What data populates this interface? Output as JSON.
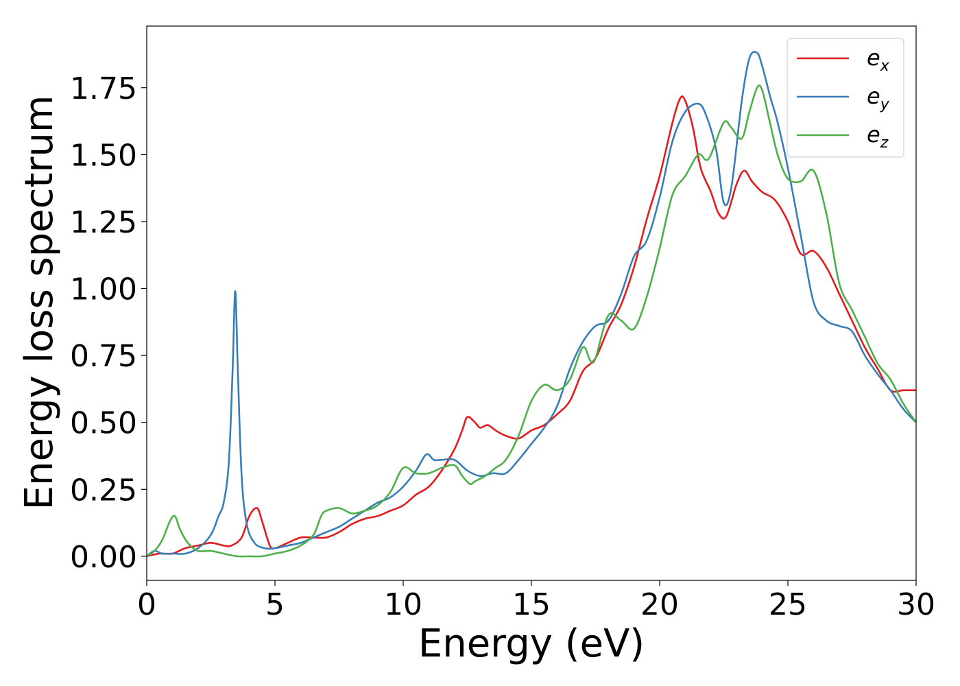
{
  "chart_data": {
    "type": "line",
    "xlabel": "Energy (eV)",
    "ylabel": "Energy loss spectrum",
    "xlim": [
      0,
      30
    ],
    "ylim": [
      -0.09,
      1.98
    ],
    "xticks": [
      "0",
      "5",
      "10",
      "15",
      "20",
      "25",
      "30"
    ],
    "yticks": [
      "0.00",
      "0.25",
      "0.50",
      "0.75",
      "1.00",
      "1.25",
      "1.50",
      "1.75"
    ],
    "grid": false,
    "legend_position": "top-right",
    "series": [
      {
        "name": "e",
        "subscript": "x",
        "color": "#e41a1c",
        "x": [
          0,
          0.5,
          1.0,
          1.5,
          2.0,
          2.5,
          3.0,
          3.3,
          3.7,
          4.0,
          4.3,
          4.5,
          4.8,
          5.0,
          5.5,
          6.0,
          6.5,
          7.0,
          7.5,
          8.0,
          8.5,
          9.0,
          9.5,
          10.0,
          10.5,
          11.0,
          11.5,
          12.0,
          12.3,
          12.5,
          12.8,
          13.0,
          13.3,
          13.6,
          14.0,
          14.5,
          15.0,
          15.5,
          16.0,
          16.5,
          17.0,
          17.5,
          18.0,
          18.5,
          19.0,
          19.5,
          20.0,
          20.5,
          20.8,
          21.0,
          21.3,
          21.6,
          22.0,
          22.3,
          22.6,
          23.0,
          23.3,
          23.6,
          24.0,
          24.5,
          25.0,
          25.5,
          26.0,
          26.5,
          27.0,
          27.5,
          28.0,
          28.5,
          29.0,
          29.5,
          30.0
        ],
        "y": [
          0.0,
          0.01,
          0.01,
          0.03,
          0.04,
          0.05,
          0.04,
          0.04,
          0.07,
          0.15,
          0.18,
          0.13,
          0.04,
          0.03,
          0.05,
          0.07,
          0.07,
          0.07,
          0.09,
          0.12,
          0.14,
          0.15,
          0.17,
          0.19,
          0.23,
          0.26,
          0.32,
          0.4,
          0.47,
          0.52,
          0.5,
          0.48,
          0.49,
          0.47,
          0.45,
          0.44,
          0.47,
          0.49,
          0.53,
          0.58,
          0.69,
          0.74,
          0.85,
          0.94,
          1.08,
          1.26,
          1.42,
          1.62,
          1.71,
          1.7,
          1.6,
          1.45,
          1.36,
          1.28,
          1.27,
          1.39,
          1.44,
          1.4,
          1.36,
          1.33,
          1.25,
          1.13,
          1.14,
          1.08,
          0.98,
          0.88,
          0.78,
          0.7,
          0.62,
          0.62,
          0.62
        ]
      },
      {
        "name": "e",
        "subscript": "y",
        "color": "#377eb8",
        "x": [
          0,
          0.3,
          0.6,
          1.0,
          1.5,
          2.0,
          2.5,
          2.8,
          3.0,
          3.2,
          3.35,
          3.45,
          3.55,
          3.7,
          3.9,
          4.2,
          4.6,
          5.0,
          5.5,
          6.0,
          6.5,
          7.0,
          7.5,
          8.0,
          8.5,
          9.0,
          9.5,
          10.0,
          10.5,
          10.9,
          11.2,
          11.5,
          12.0,
          12.5,
          13.0,
          13.5,
          14.0,
          14.5,
          15.0,
          15.5,
          16.0,
          16.5,
          17.0,
          17.5,
          18.0,
          18.5,
          19.0,
          19.5,
          20.0,
          20.5,
          21.0,
          21.5,
          21.8,
          22.2,
          22.5,
          22.8,
          23.2,
          23.5,
          23.8,
          24.0,
          24.3,
          24.6,
          25.0,
          25.5,
          26.0,
          26.5,
          27.0,
          27.5,
          28.0,
          28.5,
          29.0,
          29.5,
          30.0
        ],
        "y": [
          0.0,
          0.02,
          0.01,
          0.01,
          0.01,
          0.03,
          0.08,
          0.15,
          0.2,
          0.35,
          0.7,
          0.99,
          0.7,
          0.3,
          0.12,
          0.05,
          0.03,
          0.03,
          0.04,
          0.05,
          0.07,
          0.09,
          0.11,
          0.14,
          0.17,
          0.2,
          0.22,
          0.26,
          0.32,
          0.38,
          0.36,
          0.36,
          0.36,
          0.32,
          0.3,
          0.31,
          0.31,
          0.36,
          0.42,
          0.48,
          0.56,
          0.7,
          0.8,
          0.86,
          0.88,
          0.98,
          1.12,
          1.18,
          1.34,
          1.55,
          1.66,
          1.69,
          1.65,
          1.52,
          1.32,
          1.38,
          1.7,
          1.86,
          1.88,
          1.83,
          1.72,
          1.62,
          1.45,
          1.2,
          0.95,
          0.88,
          0.86,
          0.84,
          0.75,
          0.68,
          0.62,
          0.55,
          0.5
        ]
      },
      {
        "name": "e",
        "subscript": "z",
        "color": "#4daf4a",
        "x": [
          0,
          0.3,
          0.6,
          0.9,
          1.1,
          1.3,
          1.6,
          2.0,
          2.5,
          3.0,
          3.5,
          4.0,
          4.5,
          5.0,
          5.5,
          6.0,
          6.5,
          6.8,
          7.0,
          7.5,
          8.0,
          8.5,
          9.0,
          9.5,
          10.0,
          10.5,
          11.0,
          11.5,
          12.0,
          12.3,
          12.6,
          12.8,
          13.2,
          13.6,
          14.0,
          14.5,
          15.0,
          15.5,
          16.0,
          16.5,
          17.0,
          17.3,
          17.5,
          18.0,
          18.5,
          19.0,
          19.5,
          20.0,
          20.5,
          21.0,
          21.5,
          21.8,
          22.0,
          22.5,
          22.8,
          23.2,
          23.5,
          23.8,
          24.0,
          24.3,
          24.6,
          25.0,
          25.5,
          26.0,
          26.5,
          27.0,
          27.5,
          28.0,
          28.5,
          29.0,
          29.5,
          30.0
        ],
        "y": [
          0.0,
          0.02,
          0.06,
          0.13,
          0.15,
          0.1,
          0.05,
          0.02,
          0.02,
          0.01,
          0.0,
          0.0,
          0.0,
          0.01,
          0.02,
          0.04,
          0.08,
          0.15,
          0.17,
          0.18,
          0.16,
          0.17,
          0.19,
          0.24,
          0.33,
          0.31,
          0.31,
          0.33,
          0.34,
          0.3,
          0.27,
          0.28,
          0.3,
          0.33,
          0.36,
          0.45,
          0.58,
          0.64,
          0.62,
          0.66,
          0.78,
          0.73,
          0.74,
          0.9,
          0.88,
          0.85,
          0.97,
          1.15,
          1.35,
          1.42,
          1.5,
          1.48,
          1.5,
          1.62,
          1.6,
          1.56,
          1.66,
          1.75,
          1.74,
          1.62,
          1.5,
          1.41,
          1.4,
          1.44,
          1.28,
          1.02,
          0.92,
          0.82,
          0.72,
          0.66,
          0.57,
          0.5
        ]
      }
    ]
  }
}
